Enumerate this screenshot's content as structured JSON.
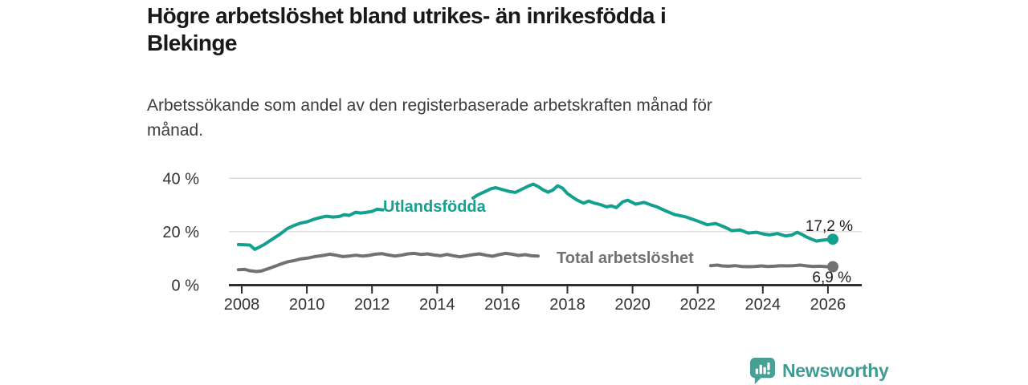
{
  "header": {
    "title_lines": [
      "Högre arbetslöshet bland utrikes- än inrikesfödda i",
      "Blekinge"
    ],
    "subtitle_lines": [
      "Arbetssökande som andel av den registerbaserade arbetskraften månad för",
      "månad."
    ]
  },
  "chart_data": {
    "type": "line",
    "title": "Högre arbetslöshet bland utrikes- än inrikesfödda i Blekinge",
    "subtitle": "Arbetssökande som andel av den registerbaserade arbetskraften månad för månad.",
    "grid": true,
    "legend_position": "inline-on-lines",
    "x_axis": {
      "ticks": [
        2008,
        2010,
        2012,
        2014,
        2016,
        2018,
        2020,
        2022,
        2024,
        2026
      ],
      "range": [
        2007.6,
        2027.0
      ]
    },
    "y_axis": {
      "unit": "%",
      "range": [
        0,
        44
      ],
      "ticks": [
        {
          "value": 40,
          "label": "40 %"
        },
        {
          "value": 20,
          "label": "20 %"
        },
        {
          "value": 0,
          "label": "0 %"
        }
      ]
    },
    "style": {
      "axis_color": "#2e2e2e",
      "grid_color": "#d9d9d9",
      "tick_text_color": "#333333"
    },
    "series": [
      {
        "id": "utlandsfodda",
        "name": "Utlandsfödda",
        "color": "#13a08f",
        "end_value": 17.2,
        "end_value_label": "17,2 %",
        "segments": [
          [
            [
              2007.9,
              15.2
            ],
            [
              2008.1,
              15.1
            ],
            [
              2008.25,
              15.0
            ],
            [
              2008.4,
              13.4
            ],
            [
              2008.55,
              14.3
            ],
            [
              2008.7,
              15.3
            ],
            [
              2008.85,
              16.5
            ],
            [
              2009.0,
              17.7
            ],
            [
              2009.2,
              19.3
            ],
            [
              2009.4,
              21.2
            ],
            [
              2009.6,
              22.3
            ],
            [
              2009.8,
              23.2
            ],
            [
              2010.0,
              23.7
            ],
            [
              2010.2,
              24.6
            ],
            [
              2010.4,
              25.3
            ],
            [
              2010.6,
              25.8
            ],
            [
              2010.8,
              25.5
            ],
            [
              2011.0,
              25.7
            ],
            [
              2011.15,
              26.4
            ],
            [
              2011.3,
              26.1
            ],
            [
              2011.5,
              27.3
            ],
            [
              2011.65,
              27.0
            ],
            [
              2011.8,
              27.2
            ],
            [
              2012.0,
              27.6
            ],
            [
              2012.15,
              28.4
            ],
            [
              2012.33,
              28.2
            ]
          ],
          [
            [
              2015.1,
              32.6
            ],
            [
              2015.25,
              33.8
            ],
            [
              2015.45,
              34.9
            ],
            [
              2015.65,
              36.1
            ],
            [
              2015.8,
              36.5
            ],
            [
              2016.0,
              35.8
            ],
            [
              2016.2,
              35.1
            ],
            [
              2016.4,
              34.7
            ],
            [
              2016.6,
              35.9
            ],
            [
              2016.8,
              37.1
            ],
            [
              2016.95,
              37.8
            ],
            [
              2017.1,
              36.9
            ],
            [
              2017.25,
              35.7
            ],
            [
              2017.4,
              34.8
            ],
            [
              2017.55,
              35.6
            ],
            [
              2017.7,
              37.2
            ],
            [
              2017.85,
              36.3
            ],
            [
              2018.0,
              34.3
            ],
            [
              2018.15,
              33.0
            ],
            [
              2018.3,
              31.8
            ],
            [
              2018.5,
              30.7
            ],
            [
              2018.65,
              31.5
            ],
            [
              2018.8,
              30.8
            ],
            [
              2019.0,
              30.2
            ],
            [
              2019.2,
              29.3
            ],
            [
              2019.35,
              29.7
            ],
            [
              2019.5,
              29.0
            ],
            [
              2019.7,
              31.2
            ],
            [
              2019.85,
              31.8
            ],
            [
              2020.1,
              30.3
            ],
            [
              2020.35,
              31.0
            ],
            [
              2020.55,
              30.1
            ],
            [
              2020.75,
              29.3
            ],
            [
              2021.0,
              27.9
            ],
            [
              2021.3,
              26.4
            ],
            [
              2021.65,
              25.5
            ],
            [
              2022.0,
              24.0
            ],
            [
              2022.3,
              22.6
            ],
            [
              2022.55,
              23.1
            ],
            [
              2022.8,
              21.9
            ],
            [
              2023.05,
              20.4
            ],
            [
              2023.3,
              20.7
            ],
            [
              2023.55,
              19.5
            ],
            [
              2023.8,
              19.8
            ],
            [
              2024.0,
              19.2
            ],
            [
              2024.2,
              18.8
            ],
            [
              2024.45,
              19.3
            ],
            [
              2024.7,
              18.4
            ],
            [
              2024.9,
              18.8
            ],
            [
              2025.05,
              19.8
            ],
            [
              2025.2,
              19.0
            ],
            [
              2025.35,
              18.0
            ],
            [
              2025.5,
              17.2
            ],
            [
              2025.65,
              16.5
            ],
            [
              2025.8,
              16.8
            ],
            [
              2026.0,
              17.1
            ],
            [
              2026.15,
              17.2
            ]
          ]
        ]
      },
      {
        "id": "total",
        "name": "Total arbetslöshet",
        "color": "#717175",
        "end_value": 6.9,
        "end_value_label": "6,9 %",
        "segments": [
          [
            [
              2007.9,
              5.8
            ],
            [
              2008.1,
              5.9
            ],
            [
              2008.25,
              5.4
            ],
            [
              2008.45,
              5.1
            ],
            [
              2008.6,
              5.3
            ],
            [
              2008.8,
              6.1
            ],
            [
              2009.0,
              7.0
            ],
            [
              2009.2,
              7.9
            ],
            [
              2009.4,
              8.7
            ],
            [
              2009.6,
              9.2
            ],
            [
              2009.8,
              9.8
            ],
            [
              2010.0,
              10.1
            ],
            [
              2010.25,
              10.7
            ],
            [
              2010.5,
              11.1
            ],
            [
              2010.7,
              11.6
            ],
            [
              2010.9,
              11.2
            ],
            [
              2011.1,
              10.7
            ],
            [
              2011.3,
              10.9
            ],
            [
              2011.5,
              11.2
            ],
            [
              2011.7,
              10.9
            ],
            [
              2011.9,
              11.1
            ],
            [
              2012.1,
              11.6
            ],
            [
              2012.3,
              11.8
            ],
            [
              2012.5,
              11.3
            ],
            [
              2012.7,
              10.9
            ],
            [
              2012.9,
              11.2
            ],
            [
              2013.1,
              11.7
            ],
            [
              2013.3,
              11.9
            ],
            [
              2013.5,
              11.5
            ],
            [
              2013.7,
              11.7
            ],
            [
              2013.9,
              11.3
            ],
            [
              2014.1,
              11.0
            ],
            [
              2014.3,
              11.5
            ],
            [
              2014.5,
              11.0
            ],
            [
              2014.7,
              10.6
            ],
            [
              2014.9,
              11.0
            ],
            [
              2015.1,
              11.4
            ],
            [
              2015.3,
              11.7
            ],
            [
              2015.5,
              11.2
            ],
            [
              2015.7,
              10.8
            ],
            [
              2015.9,
              11.4
            ],
            [
              2016.1,
              11.9
            ],
            [
              2016.3,
              11.6
            ],
            [
              2016.5,
              11.1
            ],
            [
              2016.7,
              11.4
            ],
            [
              2016.9,
              11.0
            ],
            [
              2017.1,
              10.9
            ]
          ],
          [
            [
              2022.4,
              7.3
            ],
            [
              2022.6,
              7.5
            ],
            [
              2022.75,
              7.2
            ],
            [
              2022.95,
              7.1
            ],
            [
              2023.15,
              7.3
            ],
            [
              2023.35,
              7.0
            ],
            [
              2023.55,
              6.9
            ],
            [
              2023.75,
              7.0
            ],
            [
              2023.95,
              7.2
            ],
            [
              2024.15,
              7.0
            ],
            [
              2024.35,
              7.1
            ],
            [
              2024.55,
              7.3
            ],
            [
              2024.75,
              7.2
            ],
            [
              2024.95,
              7.3
            ],
            [
              2025.15,
              7.5
            ],
            [
              2025.35,
              7.2
            ],
            [
              2025.55,
              7.0
            ],
            [
              2025.75,
              7.1
            ],
            [
              2025.95,
              6.9
            ],
            [
              2026.15,
              6.9
            ]
          ]
        ]
      }
    ]
  },
  "footer": {
    "brand_name": "Newsworthy",
    "logo_color": "#47a096"
  }
}
